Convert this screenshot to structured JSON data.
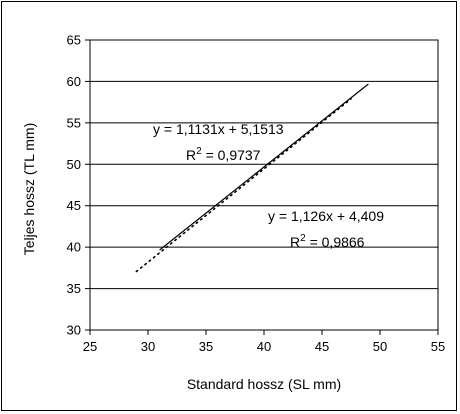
{
  "chart_data": {
    "type": "line",
    "xlabel": "Standard hossz (SL mm)",
    "ylabel": "Teljes hossz (TL mm)",
    "xlim": [
      25,
      55
    ],
    "ylim": [
      30,
      65
    ],
    "x_ticks": [
      "25",
      "30",
      "35",
      "40",
      "45",
      "50",
      "55"
    ],
    "y_ticks": [
      "30",
      "35",
      "40",
      "45",
      "50",
      "55",
      "60",
      "65"
    ],
    "grid": "horizontal",
    "legend": "none",
    "series": [
      {
        "line_style": "solid",
        "color": "#000000",
        "x_range": [
          31,
          49
        ],
        "slope": 1.1131,
        "intercept": 5.1513,
        "equation": "y = 1,1131x + 5,1513",
        "r2_label": "R",
        "r2_value": "2",
        "r2_text": " = 0,9737"
      },
      {
        "line_style": "dotted",
        "color": "#000000",
        "x_range": [
          29,
          47.5
        ],
        "slope": 1.126,
        "intercept": 4.409,
        "equation": "y = 1,126x + 4,409",
        "r2_label": "R",
        "r2_value": "2",
        "r2_text": " = 0,9866"
      }
    ]
  }
}
